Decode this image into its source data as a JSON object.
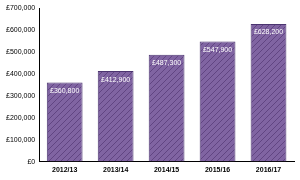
{
  "chart_data": {
    "type": "bar",
    "categories": [
      "2012/13",
      "2013/14",
      "2014/15",
      "2015/16",
      "2016/17"
    ],
    "values": [
      360800,
      412900,
      487300,
      547900,
      628200
    ],
    "value_labels": [
      "£360,800",
      "£412,900",
      "£487,300",
      "£547,900",
      "£628,200"
    ],
    "color": "#8064a2",
    "ylim": [
      0,
      700000
    ],
    "yticks": [
      {
        "value": 0,
        "label": "£0"
      },
      {
        "value": 100000,
        "label": "£100,000"
      },
      {
        "value": 200000,
        "label": "£200,000"
      },
      {
        "value": 300000,
        "label": "£300,000"
      },
      {
        "value": 400000,
        "label": "£400,000"
      },
      {
        "value": 500000,
        "label": "£500,000"
      },
      {
        "value": 600000,
        "label": "£600,000"
      },
      {
        "value": 700000,
        "label": "£700,000"
      }
    ],
    "grid": false,
    "data_labels": true
  }
}
